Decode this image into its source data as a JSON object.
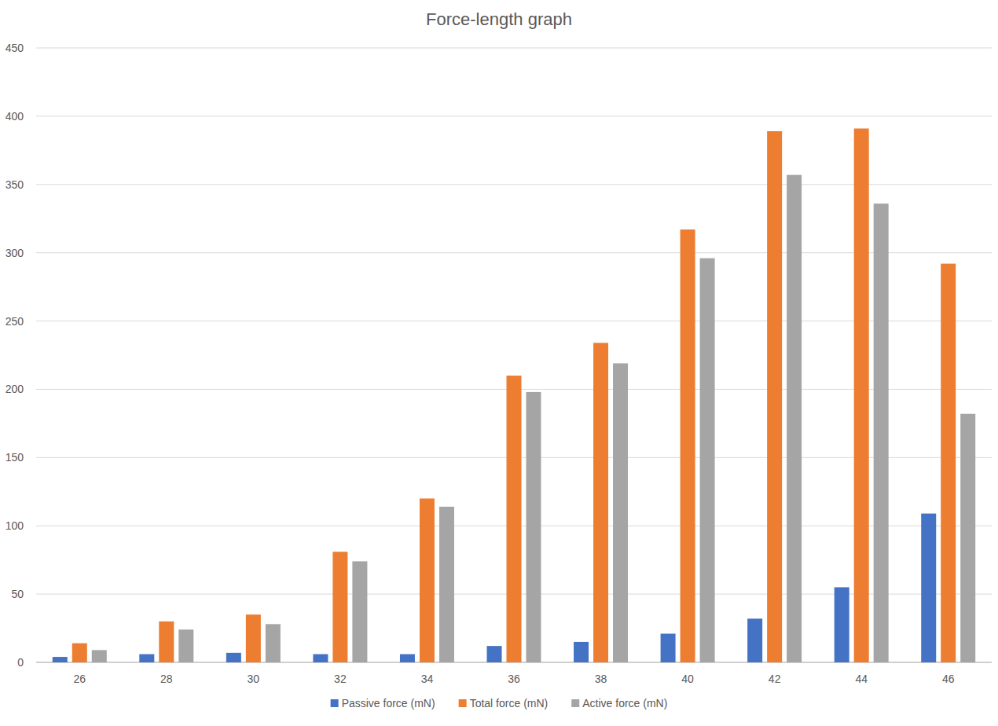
{
  "chart_data": {
    "type": "bar",
    "title": "Force-length graph",
    "categories": [
      26,
      28,
      30,
      32,
      34,
      36,
      38,
      40,
      42,
      44,
      46
    ],
    "series": [
      {
        "name": "Passive force (mN)",
        "color": "#4472c4",
        "values": [
          4,
          6,
          7,
          6,
          6,
          12,
          15,
          21,
          32,
          55,
          109
        ]
      },
      {
        "name": "Total force (mN)",
        "color": "#ed7d31",
        "values": [
          14,
          30,
          35,
          81,
          120,
          210,
          234,
          317,
          389,
          391,
          292
        ]
      },
      {
        "name": "Active force (mN)",
        "color": "#a5a5a5",
        "values": [
          9,
          24,
          28,
          74,
          114,
          198,
          219,
          296,
          357,
          336,
          182
        ]
      }
    ],
    "ylim": [
      0,
      450
    ],
    "yticks": [
      0,
      50,
      100,
      150,
      200,
      250,
      300,
      350,
      400,
      450
    ],
    "grid": true,
    "legend": "bottom"
  }
}
